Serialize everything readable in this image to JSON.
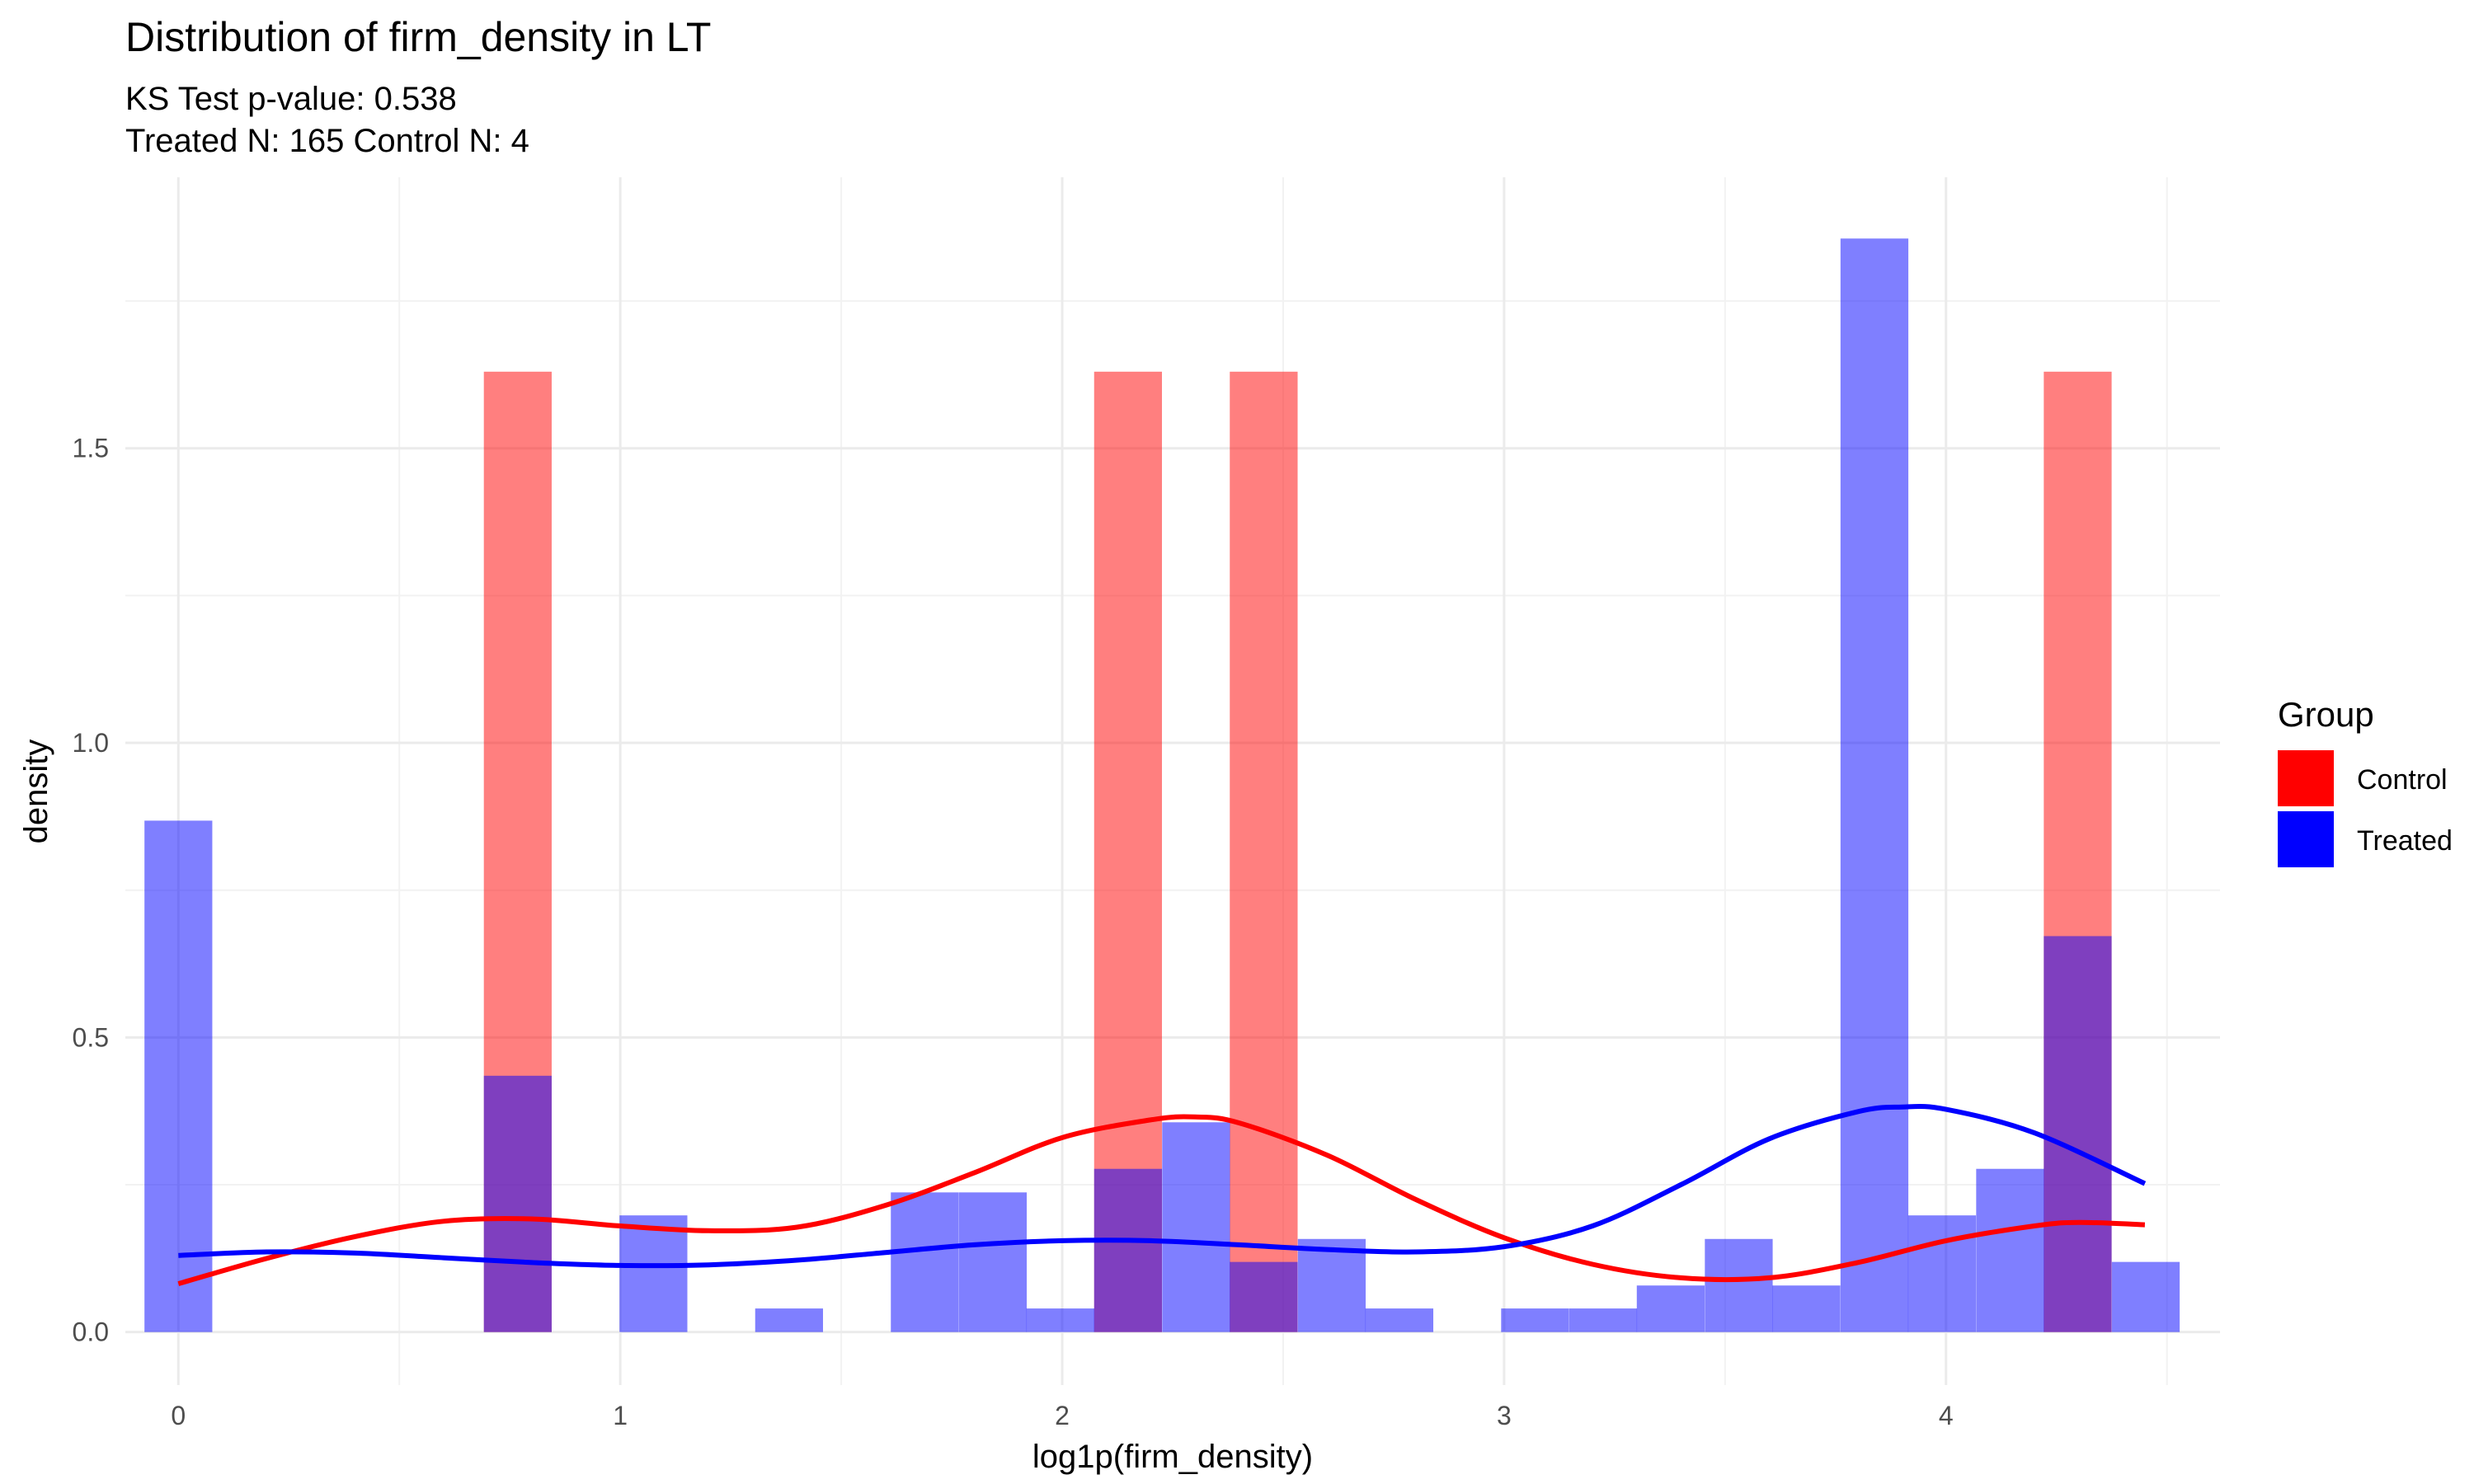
{
  "chart_data": {
    "type": "bar",
    "title": "Distribution of firm_density in LT",
    "subtitle_lines": [
      "KS Test p-value: 0.538",
      "Treated N: 165 Control N: 4"
    ],
    "xlabel": "log1p(firm_density)",
    "ylabel": "density",
    "xlim": [
      -0.12,
      4.62
    ],
    "ylim": [
      -0.09,
      1.96
    ],
    "x_ticks": [
      0,
      1,
      2,
      3,
      4
    ],
    "x_tick_labels": [
      "0",
      "1",
      "2",
      "3",
      "4"
    ],
    "y_ticks": [
      0,
      0.5,
      1.0,
      1.5
    ],
    "y_tick_labels": [
      "0.0",
      "0.5",
      "1.0",
      "1.5"
    ],
    "grid": true,
    "bin_width": 0.1535,
    "legend": {
      "title": "Group",
      "position": "right",
      "entries": [
        {
          "label": "Control",
          "color": "#ff0000"
        },
        {
          "label": "Treated",
          "color": "#0000ff"
        }
      ]
    },
    "series": [
      {
        "name": "Control",
        "color": "#ff0000",
        "histogram": {
          "centers": [
            0.768,
            2.149,
            2.456,
            4.298
          ],
          "values": [
            1.63,
            1.63,
            1.63,
            1.63
          ]
        },
        "density_curve": {
          "x": [
            0.0,
            0.2,
            0.4,
            0.6,
            0.8,
            1.0,
            1.2,
            1.4,
            1.6,
            1.8,
            2.0,
            2.2,
            2.3,
            2.4,
            2.6,
            2.8,
            3.0,
            3.2,
            3.4,
            3.6,
            3.8,
            4.0,
            4.2,
            4.3,
            4.45
          ],
          "y": [
            0.082,
            0.125,
            0.162,
            0.188,
            0.192,
            0.18,
            0.172,
            0.178,
            0.215,
            0.27,
            0.33,
            0.36,
            0.365,
            0.355,
            0.3,
            0.225,
            0.16,
            0.115,
            0.092,
            0.092,
            0.118,
            0.155,
            0.18,
            0.186,
            0.182
          ]
        }
      },
      {
        "name": "Treated",
        "color": "#0000ff",
        "histogram": {
          "centers": [
            0.0,
            0.768,
            1.075,
            1.382,
            1.689,
            1.843,
            1.996,
            2.149,
            2.303,
            2.456,
            2.61,
            2.763,
            3.07,
            3.224,
            3.377,
            3.531,
            3.684,
            3.838,
            3.991,
            4.145,
            4.298,
            4.452
          ],
          "values": [
            0.868,
            0.435,
            0.198,
            0.04,
            0.237,
            0.237,
            0.04,
            0.277,
            0.356,
            0.119,
            0.158,
            0.04,
            0.04,
            0.04,
            0.079,
            0.158,
            0.079,
            1.856,
            0.198,
            0.277,
            0.672,
            0.119
          ]
        },
        "density_curve": {
          "x": [
            0.0,
            0.2,
            0.4,
            0.6,
            0.8,
            1.0,
            1.2,
            1.4,
            1.6,
            1.8,
            2.0,
            2.2,
            2.4,
            2.6,
            2.8,
            3.0,
            3.2,
            3.4,
            3.6,
            3.8,
            3.9,
            4.0,
            4.2,
            4.45
          ],
          "y": [
            0.13,
            0.136,
            0.134,
            0.126,
            0.118,
            0.113,
            0.114,
            0.122,
            0.135,
            0.148,
            0.155,
            0.155,
            0.148,
            0.14,
            0.136,
            0.145,
            0.18,
            0.25,
            0.328,
            0.374,
            0.382,
            0.378,
            0.338,
            0.252
          ]
        }
      }
    ]
  }
}
